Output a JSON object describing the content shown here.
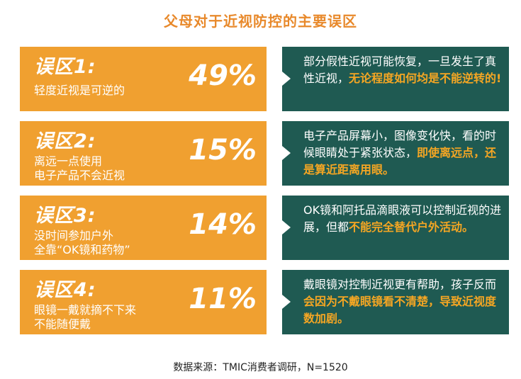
{
  "title": "父母对于近视防控的主要误区",
  "rows": [
    {
      "heading": "误区1:",
      "desc_lines": [
        "轻度近视是可逆的"
      ],
      "percent": "49%",
      "text_plain": "部分假性近视可能恢复，一旦发生了真性近视，",
      "text_highlight": "无论程度如何均是不能逆转的",
      "text_after": "!"
    },
    {
      "heading": "误区2:",
      "desc_lines": [
        "离远一点使用",
        "电子产品不会近视"
      ],
      "percent": "15%",
      "text_plain": "电子产品屏幕小，图像变化快，看的时候眼睛处于紧张状态，",
      "text_highlight": "即使离远点，还是算近距离用眼。",
      "text_after": ""
    },
    {
      "heading": "误区3:",
      "desc_lines": [
        "没时间参加户外",
        "全靠“OK镜和药物”"
      ],
      "percent": "14%",
      "text_plain": "OK镜和阿托品滴眼液可以控制近视的进展，但都",
      "text_highlight": "不能完全替代户外活动。",
      "text_after": ""
    },
    {
      "heading": "误区4:",
      "desc_lines": [
        "眼镜一戴就摘不下来",
        "不能随便戴"
      ],
      "percent": "11%",
      "text_plain": "戴眼镜对控制近视更有帮助，孩子反而",
      "text_highlight": "会因为不戴眼镜看不清楚，导致近视度数加剧。",
      "text_after": ""
    }
  ],
  "source": "数据来源：TMIC消费者调研，N=1520",
  "colors": {
    "orange": "#f0a030",
    "teal": "#1f5a52",
    "highlight": "#f5a623",
    "title": "#e8892b"
  }
}
